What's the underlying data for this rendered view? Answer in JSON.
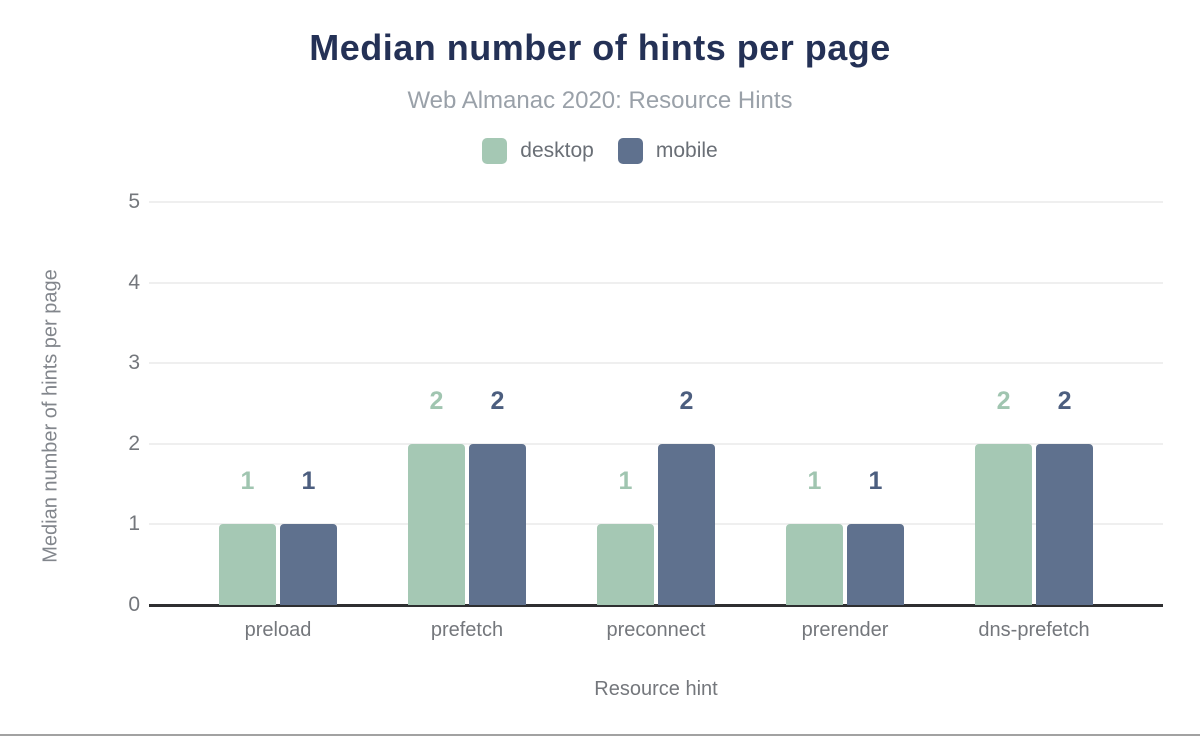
{
  "title": "Median number of hints per page",
  "subtitle": "Web Almanac 2020: Resource Hints",
  "colors": {
    "title": "#243156",
    "subtitle": "#9aa1a9",
    "axis_line": "#2e2f31",
    "gridline": "#efefef",
    "tick_text": "#74777c",
    "bottom_rule": "#a2a2a2"
  },
  "chart_data": {
    "type": "bar",
    "title": "Median number of hints per page",
    "subtitle": "Web Almanac 2020: Resource Hints",
    "categories": [
      "preload",
      "prefetch",
      "preconnect",
      "prerender",
      "dns-prefetch"
    ],
    "series": [
      {
        "name": "desktop",
        "color": "#a5c8b4",
        "label_color": "#a0c5b0",
        "values": [
          1,
          2,
          1,
          1,
          2
        ]
      },
      {
        "name": "mobile",
        "color": "#5f718e",
        "label_color": "#4c5e7f",
        "values": [
          1,
          2,
          2,
          1,
          2
        ]
      }
    ],
    "xlabel": "Resource hint",
    "ylabel": "Median number of hints per page",
    "ylim": [
      0,
      5
    ],
    "yticks": [
      0,
      1,
      2,
      3,
      4,
      5
    ],
    "grid": true,
    "legend_position": "top",
    "bar_value_labels": true
  }
}
